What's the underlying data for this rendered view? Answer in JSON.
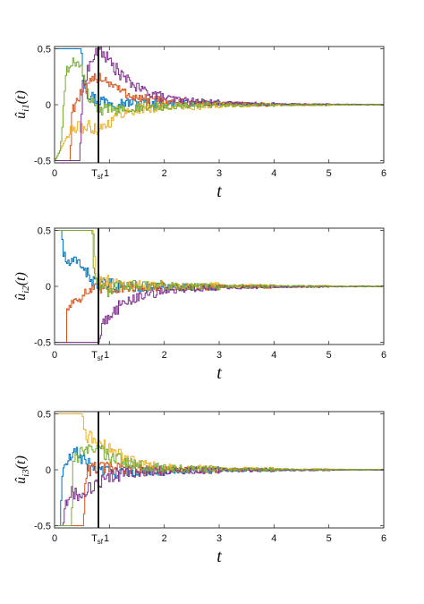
{
  "chart_data": [
    {
      "type": "line",
      "title": "",
      "xlabel": "t",
      "ylabel": "û_{i1}(t)",
      "ylabel_parts": {
        "hat": "û",
        "sub": "i1",
        "tail": "(t)"
      },
      "xlim": [
        0,
        6
      ],
      "ylim": [
        -0.52,
        0.52
      ],
      "xticks": [
        0,
        1,
        2,
        3,
        4,
        5,
        6
      ],
      "xtick_labels": [
        "0",
        "",
        "2",
        "3",
        "4",
        "5",
        "6"
      ],
      "yticks": [
        -0.5,
        0,
        0.5
      ],
      "ytick_labels": [
        "-0.5",
        "0",
        "0.5"
      ],
      "grid": false,
      "legend": "none",
      "marker": {
        "x": 0.8,
        "label_main": "T",
        "label_sub": "sf",
        "label_one": "1"
      },
      "series": [
        {
          "color": "#0072BD",
          "values": [
            [
              0,
              0.5
            ],
            [
              0.48,
              0.5
            ],
            [
              0.5,
              0.3
            ],
            [
              0.55,
              0.18
            ],
            [
              0.6,
              0.1
            ],
            [
              0.7,
              0.06
            ],
            [
              0.8,
              0.04
            ],
            [
              1.2,
              0.02
            ],
            [
              1.8,
              0.012
            ],
            [
              2.5,
              0.008
            ],
            [
              3.5,
              0.004
            ],
            [
              4.5,
              0.002
            ],
            [
              6,
              0.0
            ]
          ]
        },
        {
          "color": "#D95319",
          "values": [
            [
              0,
              -0.5
            ],
            [
              0.28,
              -0.5
            ],
            [
              0.3,
              -0.05
            ],
            [
              0.45,
              0.08
            ],
            [
              0.6,
              0.15
            ],
            [
              0.7,
              0.22
            ],
            [
              0.8,
              0.26
            ],
            [
              1.0,
              0.2
            ],
            [
              1.2,
              0.12
            ],
            [
              1.5,
              0.06
            ],
            [
              2.0,
              0.025
            ],
            [
              3.0,
              0.01
            ],
            [
              4.0,
              0.004
            ],
            [
              6,
              0.0
            ]
          ]
        },
        {
          "color": "#EDB120",
          "values": [
            [
              0,
              -0.5
            ],
            [
              0.2,
              -0.3
            ],
            [
              0.3,
              -0.22
            ],
            [
              0.5,
              -0.2
            ],
            [
              0.7,
              -0.2
            ],
            [
              0.8,
              -0.22
            ],
            [
              1.0,
              -0.15
            ],
            [
              1.2,
              -0.08
            ],
            [
              1.5,
              -0.04
            ],
            [
              2.0,
              -0.02
            ],
            [
              3.0,
              -0.008
            ],
            [
              4.0,
              -0.003
            ],
            [
              6,
              0.0
            ]
          ]
        },
        {
          "color": "#7E2F8E",
          "values": [
            [
              0,
              -0.5
            ],
            [
              0.45,
              -0.5
            ],
            [
              0.5,
              0.15
            ],
            [
              0.6,
              0.32
            ],
            [
              0.7,
              0.42
            ],
            [
              0.8,
              0.5
            ],
            [
              0.9,
              0.45
            ],
            [
              1.0,
              0.38
            ],
            [
              1.2,
              0.27
            ],
            [
              1.5,
              0.15
            ],
            [
              2.0,
              0.06
            ],
            [
              2.5,
              0.03
            ],
            [
              3.0,
              0.015
            ],
            [
              4.0,
              0.005
            ],
            [
              6,
              0.0
            ]
          ]
        },
        {
          "color": "#77AC30",
          "values": [
            [
              0,
              -0.5
            ],
            [
              0.1,
              -0.4
            ],
            [
              0.2,
              0.3
            ],
            [
              0.3,
              0.4
            ],
            [
              0.4,
              0.35
            ],
            [
              0.5,
              0.3
            ],
            [
              0.6,
              0.08
            ],
            [
              0.8,
              -0.06
            ],
            [
              1.0,
              -0.04
            ],
            [
              1.4,
              -0.02
            ],
            [
              2.0,
              -0.01
            ],
            [
              3.0,
              -0.004
            ],
            [
              6,
              0.0
            ]
          ]
        }
      ]
    },
    {
      "type": "line",
      "title": "",
      "xlabel": "t",
      "ylabel": "û_{i2}(t)",
      "ylabel_parts": {
        "hat": "û",
        "sub": "i2",
        "tail": "(t)"
      },
      "xlim": [
        0,
        6
      ],
      "ylim": [
        -0.52,
        0.52
      ],
      "xticks": [
        0,
        1,
        2,
        3,
        4,
        5,
        6
      ],
      "xtick_labels": [
        "0",
        "",
        "2",
        "3",
        "4",
        "5",
        "6"
      ],
      "yticks": [
        -0.5,
        0,
        0.5
      ],
      "ytick_labels": [
        "-0.5",
        "0",
        "0.5"
      ],
      "grid": false,
      "legend": "none",
      "marker": {
        "x": 0.8,
        "label_main": "T",
        "label_sub": "sf",
        "label_one": "1"
      },
      "series": [
        {
          "color": "#0072BD",
          "values": [
            [
              0,
              0.5
            ],
            [
              0.12,
              0.5
            ],
            [
              0.15,
              0.3
            ],
            [
              0.2,
              0.22
            ],
            [
              0.3,
              0.2
            ],
            [
              0.4,
              0.22
            ],
            [
              0.5,
              0.2
            ],
            [
              0.55,
              0.15
            ],
            [
              0.6,
              0.1
            ],
            [
              0.7,
              0.05
            ],
            [
              0.8,
              0.02
            ],
            [
              1.2,
              0.0
            ],
            [
              2.0,
              -0.01
            ],
            [
              3.0,
              -0.005
            ],
            [
              6,
              0.0
            ]
          ]
        },
        {
          "color": "#D95319",
          "values": [
            [
              0,
              -0.5
            ],
            [
              0.2,
              -0.5
            ],
            [
              0.22,
              -0.2
            ],
            [
              0.3,
              -0.15
            ],
            [
              0.4,
              -0.1
            ],
            [
              0.5,
              -0.08
            ],
            [
              0.6,
              -0.05
            ],
            [
              0.7,
              -0.03
            ],
            [
              0.8,
              -0.02
            ],
            [
              1.2,
              -0.01
            ],
            [
              2.0,
              -0.005
            ],
            [
              6,
              0.0
            ]
          ]
        },
        {
          "color": "#EDB120",
          "values": [
            [
              0,
              0.5
            ],
            [
              0.7,
              0.5
            ],
            [
              0.75,
              0.1
            ],
            [
              0.8,
              0.05
            ],
            [
              1.0,
              0.04
            ],
            [
              1.3,
              0.02
            ],
            [
              1.8,
              0.01
            ],
            [
              2.5,
              0.005
            ],
            [
              6,
              0.0
            ]
          ]
        },
        {
          "color": "#7E2F8E",
          "values": [
            [
              0,
              -0.5
            ],
            [
              0.8,
              -0.5
            ],
            [
              0.85,
              -0.38
            ],
            [
              0.9,
              -0.3
            ],
            [
              1.0,
              -0.25
            ],
            [
              1.2,
              -0.17
            ],
            [
              1.4,
              -0.12
            ],
            [
              1.6,
              -0.08
            ],
            [
              2.0,
              -0.04
            ],
            [
              2.5,
              -0.02
            ],
            [
              3.0,
              -0.01
            ],
            [
              4.0,
              -0.004
            ],
            [
              6,
              0.0
            ]
          ]
        },
        {
          "color": "#77AC30",
          "values": [
            [
              0,
              0.5
            ],
            [
              0.68,
              0.5
            ],
            [
              0.7,
              0.2
            ],
            [
              0.75,
              0.05
            ],
            [
              0.8,
              0.0
            ],
            [
              1.0,
              -0.04
            ],
            [
              1.3,
              0.01
            ],
            [
              1.8,
              0.005
            ],
            [
              3.0,
              0.002
            ],
            [
              6,
              0.0
            ]
          ]
        }
      ]
    },
    {
      "type": "line",
      "title": "",
      "xlabel": "t",
      "ylabel": "û_{i3}(t)",
      "ylabel_parts": {
        "hat": "û",
        "sub": "i3",
        "tail": "(t)"
      },
      "xlim": [
        0,
        6
      ],
      "ylim": [
        -0.52,
        0.52
      ],
      "xticks": [
        0,
        1,
        2,
        3,
        4,
        5,
        6
      ],
      "xtick_labels": [
        "0",
        "",
        "2",
        "3",
        "4",
        "5",
        "6"
      ],
      "yticks": [
        -0.5,
        0,
        0.5
      ],
      "ytick_labels": [
        "-0.5",
        "0",
        "0.5"
      ],
      "grid": false,
      "legend": "none",
      "marker": {
        "x": 0.8,
        "label_main": "T",
        "label_sub": "sf",
        "label_one": "1"
      },
      "series": [
        {
          "color": "#0072BD",
          "values": [
            [
              0,
              -0.5
            ],
            [
              0.1,
              -0.5
            ],
            [
              0.12,
              -0.05
            ],
            [
              0.2,
              0.05
            ],
            [
              0.3,
              0.12
            ],
            [
              0.4,
              0.15
            ],
            [
              0.5,
              0.1
            ],
            [
              0.6,
              0.05
            ],
            [
              0.8,
              0.0
            ],
            [
              1.0,
              -0.02
            ],
            [
              1.5,
              -0.01
            ],
            [
              2.5,
              -0.005
            ],
            [
              6,
              0.0
            ]
          ]
        },
        {
          "color": "#D95319",
          "values": [
            [
              0,
              -0.5
            ],
            [
              0.52,
              -0.5
            ],
            [
              0.55,
              -0.1
            ],
            [
              0.6,
              0.0
            ],
            [
              0.8,
              0.02
            ],
            [
              1.0,
              0.01
            ],
            [
              1.5,
              0.0
            ],
            [
              6,
              0.0
            ]
          ]
        },
        {
          "color": "#EDB120",
          "values": [
            [
              0,
              0.5
            ],
            [
              0.5,
              0.5
            ],
            [
              0.55,
              0.3
            ],
            [
              0.7,
              0.28
            ],
            [
              0.8,
              0.25
            ],
            [
              1.0,
              0.18
            ],
            [
              1.2,
              0.12
            ],
            [
              1.5,
              0.06
            ],
            [
              2.0,
              0.02
            ],
            [
              3.0,
              0.008
            ],
            [
              6,
              0.0
            ]
          ]
        },
        {
          "color": "#7E2F8E",
          "values": [
            [
              0,
              -0.5
            ],
            [
              0.15,
              -0.5
            ],
            [
              0.18,
              -0.3
            ],
            [
              0.3,
              -0.2
            ],
            [
              0.4,
              -0.22
            ],
            [
              0.5,
              -0.2
            ],
            [
              0.6,
              -0.17
            ],
            [
              0.8,
              -0.12
            ],
            [
              1.0,
              -0.06
            ],
            [
              1.3,
              -0.03
            ],
            [
              1.8,
              -0.01
            ],
            [
              3.0,
              -0.004
            ],
            [
              6,
              0.0
            ]
          ]
        },
        {
          "color": "#77AC30",
          "values": [
            [
              0,
              -0.5
            ],
            [
              0.3,
              -0.5
            ],
            [
              0.33,
              0.1
            ],
            [
              0.5,
              0.15
            ],
            [
              0.7,
              0.2
            ],
            [
              0.8,
              0.18
            ],
            [
              1.0,
              0.12
            ],
            [
              1.3,
              0.06
            ],
            [
              1.8,
              0.02
            ],
            [
              2.5,
              0.005
            ],
            [
              6,
              0.0
            ]
          ]
        }
      ]
    }
  ]
}
